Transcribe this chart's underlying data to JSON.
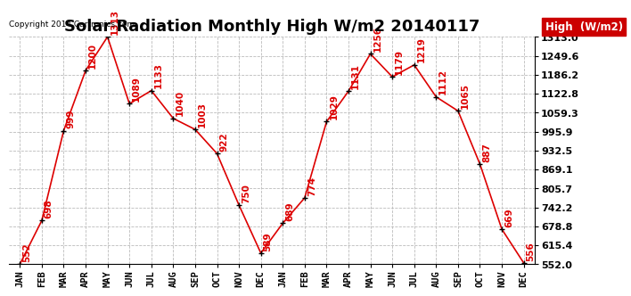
{
  "title": "Solar Radiation Monthly High W/m2 20140117",
  "copyright": "Copyright 2014 Cartronics.com",
  "legend_label": "High  (W/m2)",
  "months": [
    "JAN",
    "FEB",
    "MAR",
    "APR",
    "MAY",
    "JUN",
    "JUL",
    "AUG",
    "SEP",
    "OCT",
    "NOV",
    "DEC",
    "JAN",
    "FEB",
    "MAR",
    "APR",
    "MAY",
    "JUN",
    "JUL",
    "AUG",
    "SEP",
    "OCT",
    "NOV",
    "DEC"
  ],
  "values": [
    552,
    698,
    999,
    1200,
    1313,
    1089,
    1133,
    1040,
    1003,
    922,
    750,
    589,
    689,
    774,
    1029,
    1131,
    1256,
    1179,
    1219,
    1112,
    1065,
    887,
    669,
    556
  ],
  "ylim_min": 552.0,
  "ylim_max": 1313.0,
  "yticks": [
    552.0,
    615.4,
    678.8,
    742.2,
    805.7,
    869.1,
    932.5,
    995.9,
    1059.3,
    1122.8,
    1186.2,
    1249.6,
    1313.0
  ],
  "line_color": "#dd0000",
  "marker_color": "#000000",
  "bg_color": "#ffffff",
  "grid_color": "#bbbbbb",
  "legend_bg": "#cc0000",
  "legend_text_color": "#ffffff",
  "title_fontsize": 13,
  "label_fontsize": 7.5,
  "annotation_fontsize": 7.5,
  "copyright_fontsize": 6.5,
  "tick_label_fontsize": 8
}
